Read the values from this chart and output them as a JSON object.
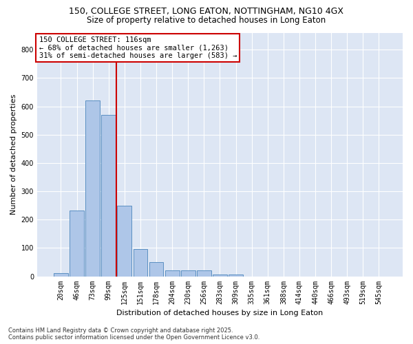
{
  "title": "150, COLLEGE STREET, LONG EATON, NOTTINGHAM, NG10 4GX",
  "subtitle": "Size of property relative to detached houses in Long Eaton",
  "xlabel": "Distribution of detached houses by size in Long Eaton",
  "ylabel": "Number of detached properties",
  "bar_color": "#aec6e8",
  "bar_edge_color": "#5a8fc2",
  "background_color": "#dde6f4",
  "categories": [
    "20sqm",
    "46sqm",
    "73sqm",
    "99sqm",
    "125sqm",
    "151sqm",
    "178sqm",
    "204sqm",
    "230sqm",
    "256sqm",
    "283sqm",
    "309sqm",
    "335sqm",
    "361sqm",
    "388sqm",
    "414sqm",
    "440sqm",
    "466sqm",
    "493sqm",
    "519sqm",
    "545sqm"
  ],
  "values": [
    10,
    232,
    620,
    570,
    250,
    97,
    50,
    20,
    20,
    20,
    5,
    5,
    0,
    0,
    0,
    0,
    0,
    0,
    0,
    0,
    0
  ],
  "ylim": [
    0,
    860
  ],
  "yticks": [
    0,
    100,
    200,
    300,
    400,
    500,
    600,
    700,
    800
  ],
  "vline_x": 3.5,
  "vline_color": "#cc0000",
  "annotation_text": "150 COLLEGE STREET: 116sqm\n← 68% of detached houses are smaller (1,263)\n31% of semi-detached houses are larger (583) →",
  "annotation_box_color": "#ffffff",
  "annotation_box_edge": "#cc0000",
  "footer_line1": "Contains HM Land Registry data © Crown copyright and database right 2025.",
  "footer_line2": "Contains public sector information licensed under the Open Government Licence v3.0.",
  "title_fontsize": 9,
  "subtitle_fontsize": 8.5,
  "tick_fontsize": 7,
  "ylabel_fontsize": 8,
  "xlabel_fontsize": 8,
  "annotation_fontsize": 7.5,
  "footer_fontsize": 6
}
